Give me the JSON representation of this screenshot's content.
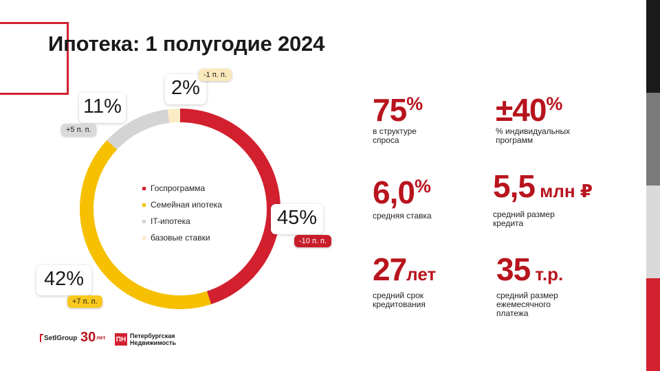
{
  "title": "Ипотека: 1 полугодие 2024",
  "colors": {
    "accent_red": "#d2202f",
    "stat_red": "#b8141d",
    "yellow": "#f6c000",
    "grey": "#d4d4d4",
    "beige": "#fbecc6",
    "strip": [
      "#1a1a1a",
      "#7a7a7a",
      "#d9d9d9",
      "#d2202f"
    ]
  },
  "chart_data": {
    "type": "pie",
    "title": "",
    "slices": [
      {
        "label": "Госпрограмма",
        "value": 45,
        "value_text": "45%",
        "delta": "-10 п. п.",
        "color": "#d2202f",
        "delta_bg": "#c81e2a",
        "delta_fg": "#ffffff"
      },
      {
        "label": "Семейная ипотека",
        "value": 42,
        "value_text": "42%",
        "delta": "+7 п. п.",
        "color": "#f6c000",
        "delta_bg": "#f8c81d",
        "delta_fg": "#1a1a1a"
      },
      {
        "label": "IT-ипотека",
        "value": 11,
        "value_text": "11%",
        "delta": "+5 п. п.",
        "color": "#d4d4d4",
        "delta_bg": "#d9d9d9",
        "delta_fg": "#1a1a1a"
      },
      {
        "label": "базовые ставки",
        "value": 2,
        "value_text": "2%",
        "delta": "-1 п. п.",
        "color": "#fbecc6",
        "delta_bg": "#fbe9bc",
        "delta_fg": "#1a1a1a"
      }
    ],
    "legend_position": "center"
  },
  "stats": [
    {
      "value": "75",
      "suffix": "%",
      "desc": "в структуре спроса"
    },
    {
      "value": "±40",
      "suffix": "%",
      "desc": "% индивидуальных программ"
    },
    {
      "value": "6,0",
      "suffix": "%",
      "desc": "средняя ставка"
    },
    {
      "value": "5,5",
      "unit": " млн ₽",
      "desc": "средний размер кредита"
    },
    {
      "value": "27",
      "unit": "лет",
      "desc": "средний срок кредитования"
    },
    {
      "value": "35",
      "unit": " т.р.",
      "desc": "средний размер ежемесячного платежа"
    }
  ],
  "footer": {
    "setgroup": "SetlGroup",
    "thirty_digits": "30",
    "thirty_sub": "лет",
    "pn_mark": "ПН",
    "pn_line1": "Петербургская",
    "pn_line2": "Недвижимость"
  }
}
